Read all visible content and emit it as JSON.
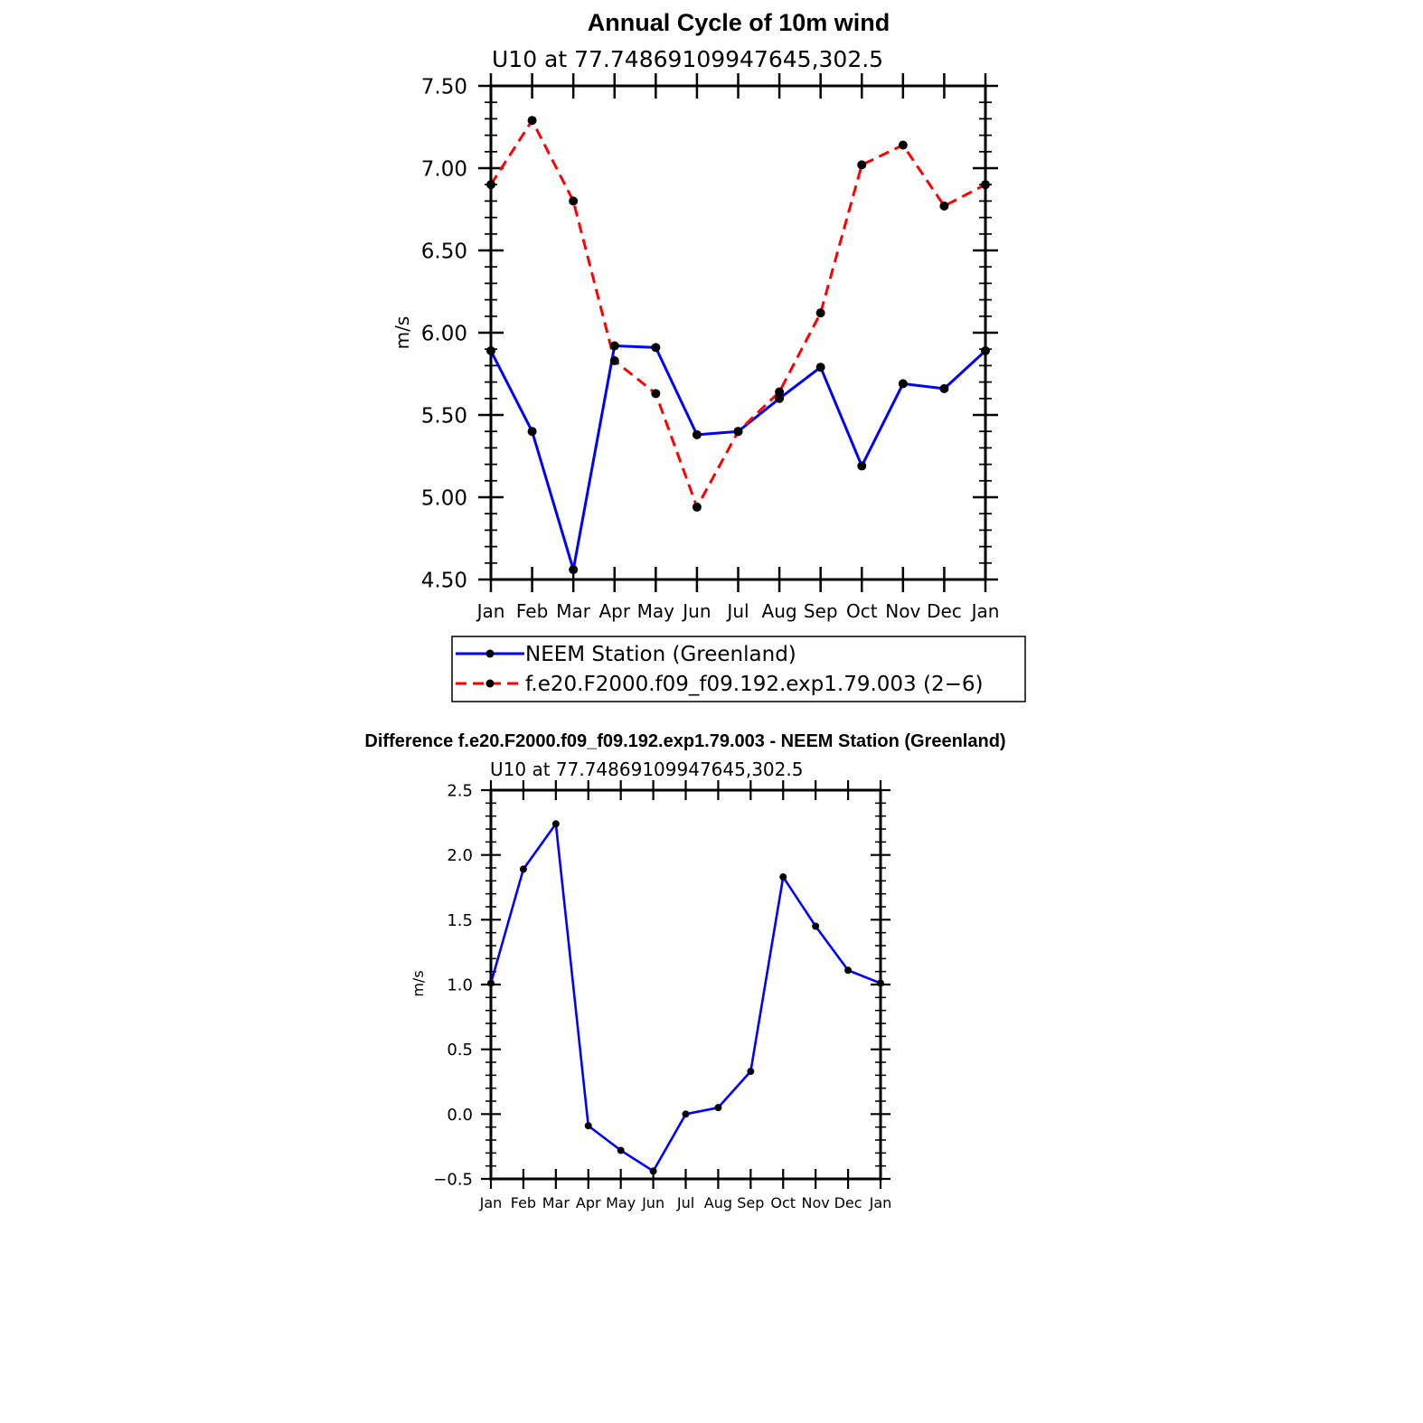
{
  "chart_data": [
    {
      "type": "line",
      "title": "Annual Cycle of 10m wind",
      "subtitle": "U10 at 77.74869109947645,302.5",
      "ylabel": "m/s",
      "xlabel": "",
      "categories": [
        "Jan",
        "Feb",
        "Mar",
        "Apr",
        "May",
        "Jun",
        "Jul",
        "Aug",
        "Sep",
        "Oct",
        "Nov",
        "Dec",
        "Jan"
      ],
      "ylim": [
        4.5,
        7.5
      ],
      "yticks": [
        "4.50",
        "5.00",
        "5.50",
        "6.00",
        "6.50",
        "7.00",
        "7.50"
      ],
      "legend_placement": "below",
      "series": [
        {
          "name": "NEEM Station (Greenland)",
          "color": "#0000ff",
          "style": "solid",
          "values": [
            5.89,
            5.4,
            4.56,
            5.92,
            5.91,
            5.38,
            5.4,
            5.6,
            5.79,
            5.19,
            5.69,
            5.66,
            5.89
          ]
        },
        {
          "name": "f.e20.F2000.f09_f09.192.exp1.79.003 (2−6)",
          "color": "#ff0000",
          "style": "dashed",
          "values": [
            6.9,
            7.29,
            6.8,
            5.83,
            5.63,
            4.94,
            5.4,
            5.64,
            6.12,
            7.02,
            7.14,
            6.77,
            6.9
          ]
        }
      ]
    },
    {
      "type": "line",
      "title": "Difference f.e20.F2000.f09_f09.192.exp1.79.003 - NEEM Station (Greenland)",
      "subtitle": "U10 at 77.74869109947645,302.5",
      "ylabel": "m/s",
      "xlabel": "",
      "categories": [
        "Jan",
        "Feb",
        "Mar",
        "Apr",
        "May",
        "Jun",
        "Jul",
        "Aug",
        "Sep",
        "Oct",
        "Nov",
        "Dec",
        "Jan"
      ],
      "ylim": [
        -0.5,
        2.5
      ],
      "yticks": [
        "−0.5",
        "0.0",
        "0.5",
        "1.0",
        "1.5",
        "2.0",
        "2.5"
      ],
      "series": [
        {
          "color": "#0000ff",
          "style": "solid",
          "values": [
            1.01,
            1.89,
            2.24,
            -0.09,
            -0.28,
            -0.44,
            0.0,
            0.05,
            0.33,
            1.83,
            1.45,
            1.11,
            1.01
          ]
        }
      ]
    }
  ]
}
